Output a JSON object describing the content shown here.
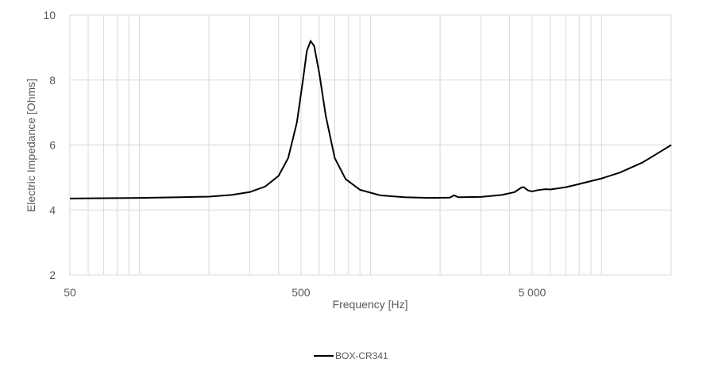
{
  "chart_data": {
    "type": "line",
    "title": "",
    "xlabel": "Frequency [Hz]",
    "ylabel": "Electric Impedance [Ohms]",
    "x_scale": "log",
    "xlim": [
      50,
      20000
    ],
    "ylim": [
      2,
      10
    ],
    "x_tick_labels": [
      {
        "value": 50,
        "label": "50"
      },
      {
        "value": 500,
        "label": "500"
      },
      {
        "value": 5000,
        "label": "5 000"
      }
    ],
    "y_ticks": [
      {
        "value": 2,
        "label": "2"
      },
      {
        "value": 4,
        "label": "4"
      },
      {
        "value": 6,
        "label": "6"
      },
      {
        "value": 8,
        "label": "8"
      },
      {
        "value": 10,
        "label": "10"
      }
    ],
    "grid": true,
    "legend_position": "bottom",
    "series": [
      {
        "name": "BOX-CR341",
        "color": "#000000",
        "points": [
          [
            50,
            4.35
          ],
          [
            70,
            4.36
          ],
          [
            100,
            4.37
          ],
          [
            150,
            4.39
          ],
          [
            200,
            4.41
          ],
          [
            250,
            4.46
          ],
          [
            300,
            4.55
          ],
          [
            350,
            4.72
          ],
          [
            400,
            5.05
          ],
          [
            440,
            5.6
          ],
          [
            480,
            6.7
          ],
          [
            510,
            8.0
          ],
          [
            530,
            8.9
          ],
          [
            550,
            9.2
          ],
          [
            570,
            9.05
          ],
          [
            600,
            8.2
          ],
          [
            640,
            6.9
          ],
          [
            700,
            5.6
          ],
          [
            780,
            4.95
          ],
          [
            900,
            4.62
          ],
          [
            1100,
            4.45
          ],
          [
            1400,
            4.39
          ],
          [
            1800,
            4.37
          ],
          [
            2200,
            4.38
          ],
          [
            2300,
            4.45
          ],
          [
            2400,
            4.39
          ],
          [
            3000,
            4.4
          ],
          [
            3700,
            4.46
          ],
          [
            4200,
            4.55
          ],
          [
            4500,
            4.69
          ],
          [
            4600,
            4.7
          ],
          [
            4800,
            4.6
          ],
          [
            5000,
            4.57
          ],
          [
            5300,
            4.61
          ],
          [
            5700,
            4.64
          ],
          [
            6000,
            4.63
          ],
          [
            7000,
            4.7
          ],
          [
            8000,
            4.8
          ],
          [
            10000,
            4.97
          ],
          [
            12000,
            5.15
          ],
          [
            15000,
            5.46
          ],
          [
            18000,
            5.8
          ],
          [
            20000,
            6.0
          ]
        ]
      }
    ]
  }
}
